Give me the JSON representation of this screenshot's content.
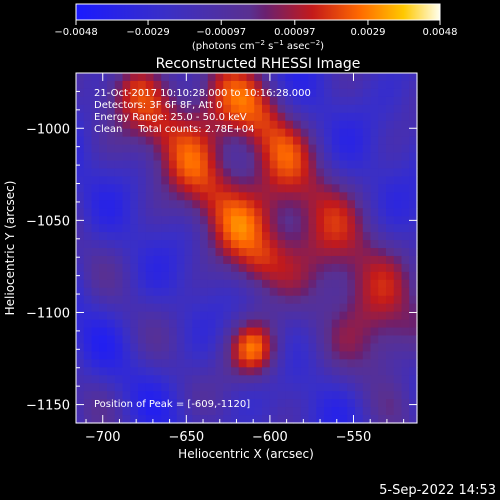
{
  "chart_data": {
    "type": "heatmap",
    "title": "Reconstructed RHESSI Image",
    "xlabel": "Heliocentric X (arcsec)",
    "ylabel": "Heliocentric Y (arcsec)",
    "xlim": [
      -716,
      -512
    ],
    "ylim": [
      -1160,
      -970
    ],
    "x_ticks": [
      -700,
      -650,
      -600,
      -550
    ],
    "y_ticks": [
      -1000,
      -1050,
      -1100,
      -1150
    ],
    "x_tick_labels": [
      "−700",
      "−650",
      "−600",
      "−550"
    ],
    "y_tick_labels": [
      "−1000",
      "−1050",
      "−1100",
      "−1150"
    ],
    "colorbar": {
      "range": [
        -0.0048,
        0.0048
      ],
      "ticks": [
        -0.0048,
        -0.0029,
        -0.00097,
        0.00097,
        0.0029,
        0.0048
      ],
      "tick_labels": [
        "−0.0048",
        "−0.0029",
        "−0.00097",
        "0.00097",
        "0.0029",
        "0.0048"
      ],
      "label_prefix": "(photons cm",
      "label_exp1": "−2",
      "label_mid1": " s",
      "label_exp2": "−1",
      "label_mid2": " asec",
      "label_exp3": "−2",
      "label_suffix": ")"
    },
    "annotations": [
      "21-Oct-2017 10:10:28.000 to 10:16:28.000",
      "Detectors: 3F 6F 8F, Att 0",
      "Energy Range: 25.0 - 50.0 keV",
      "Clean     Total counts: 2.78E+04"
    ],
    "peak_label": "Position of Peak = [-609,-1120]",
    "peak": [
      -609,
      -1120
    ],
    "sources": [
      {
        "name": "",
        "x": [
          -680,
          -660,
          -640,
          -625,
          -610
        ],
        "y": [
          -980,
          -1005,
          -1030,
          -1050,
          -1070
        ],
        "width": 14,
        "amplitude": 0.0036
      },
      {
        "name": "",
        "x": [
          -630,
          -610,
          -590,
          -570,
          -548,
          -528
        ],
        "y": [
          -985,
          -1000,
          -1035,
          -1060,
          -1085,
          -1110
        ],
        "width": 16,
        "amplitude": 0.004
      },
      {
        "name": "",
        "x": [
          -609
        ],
        "y": [
          -1120
        ],
        "width": 12,
        "amplitude": 0.0048
      }
    ]
  },
  "footer": {
    "date": "5-Sep-2022 14:53"
  }
}
